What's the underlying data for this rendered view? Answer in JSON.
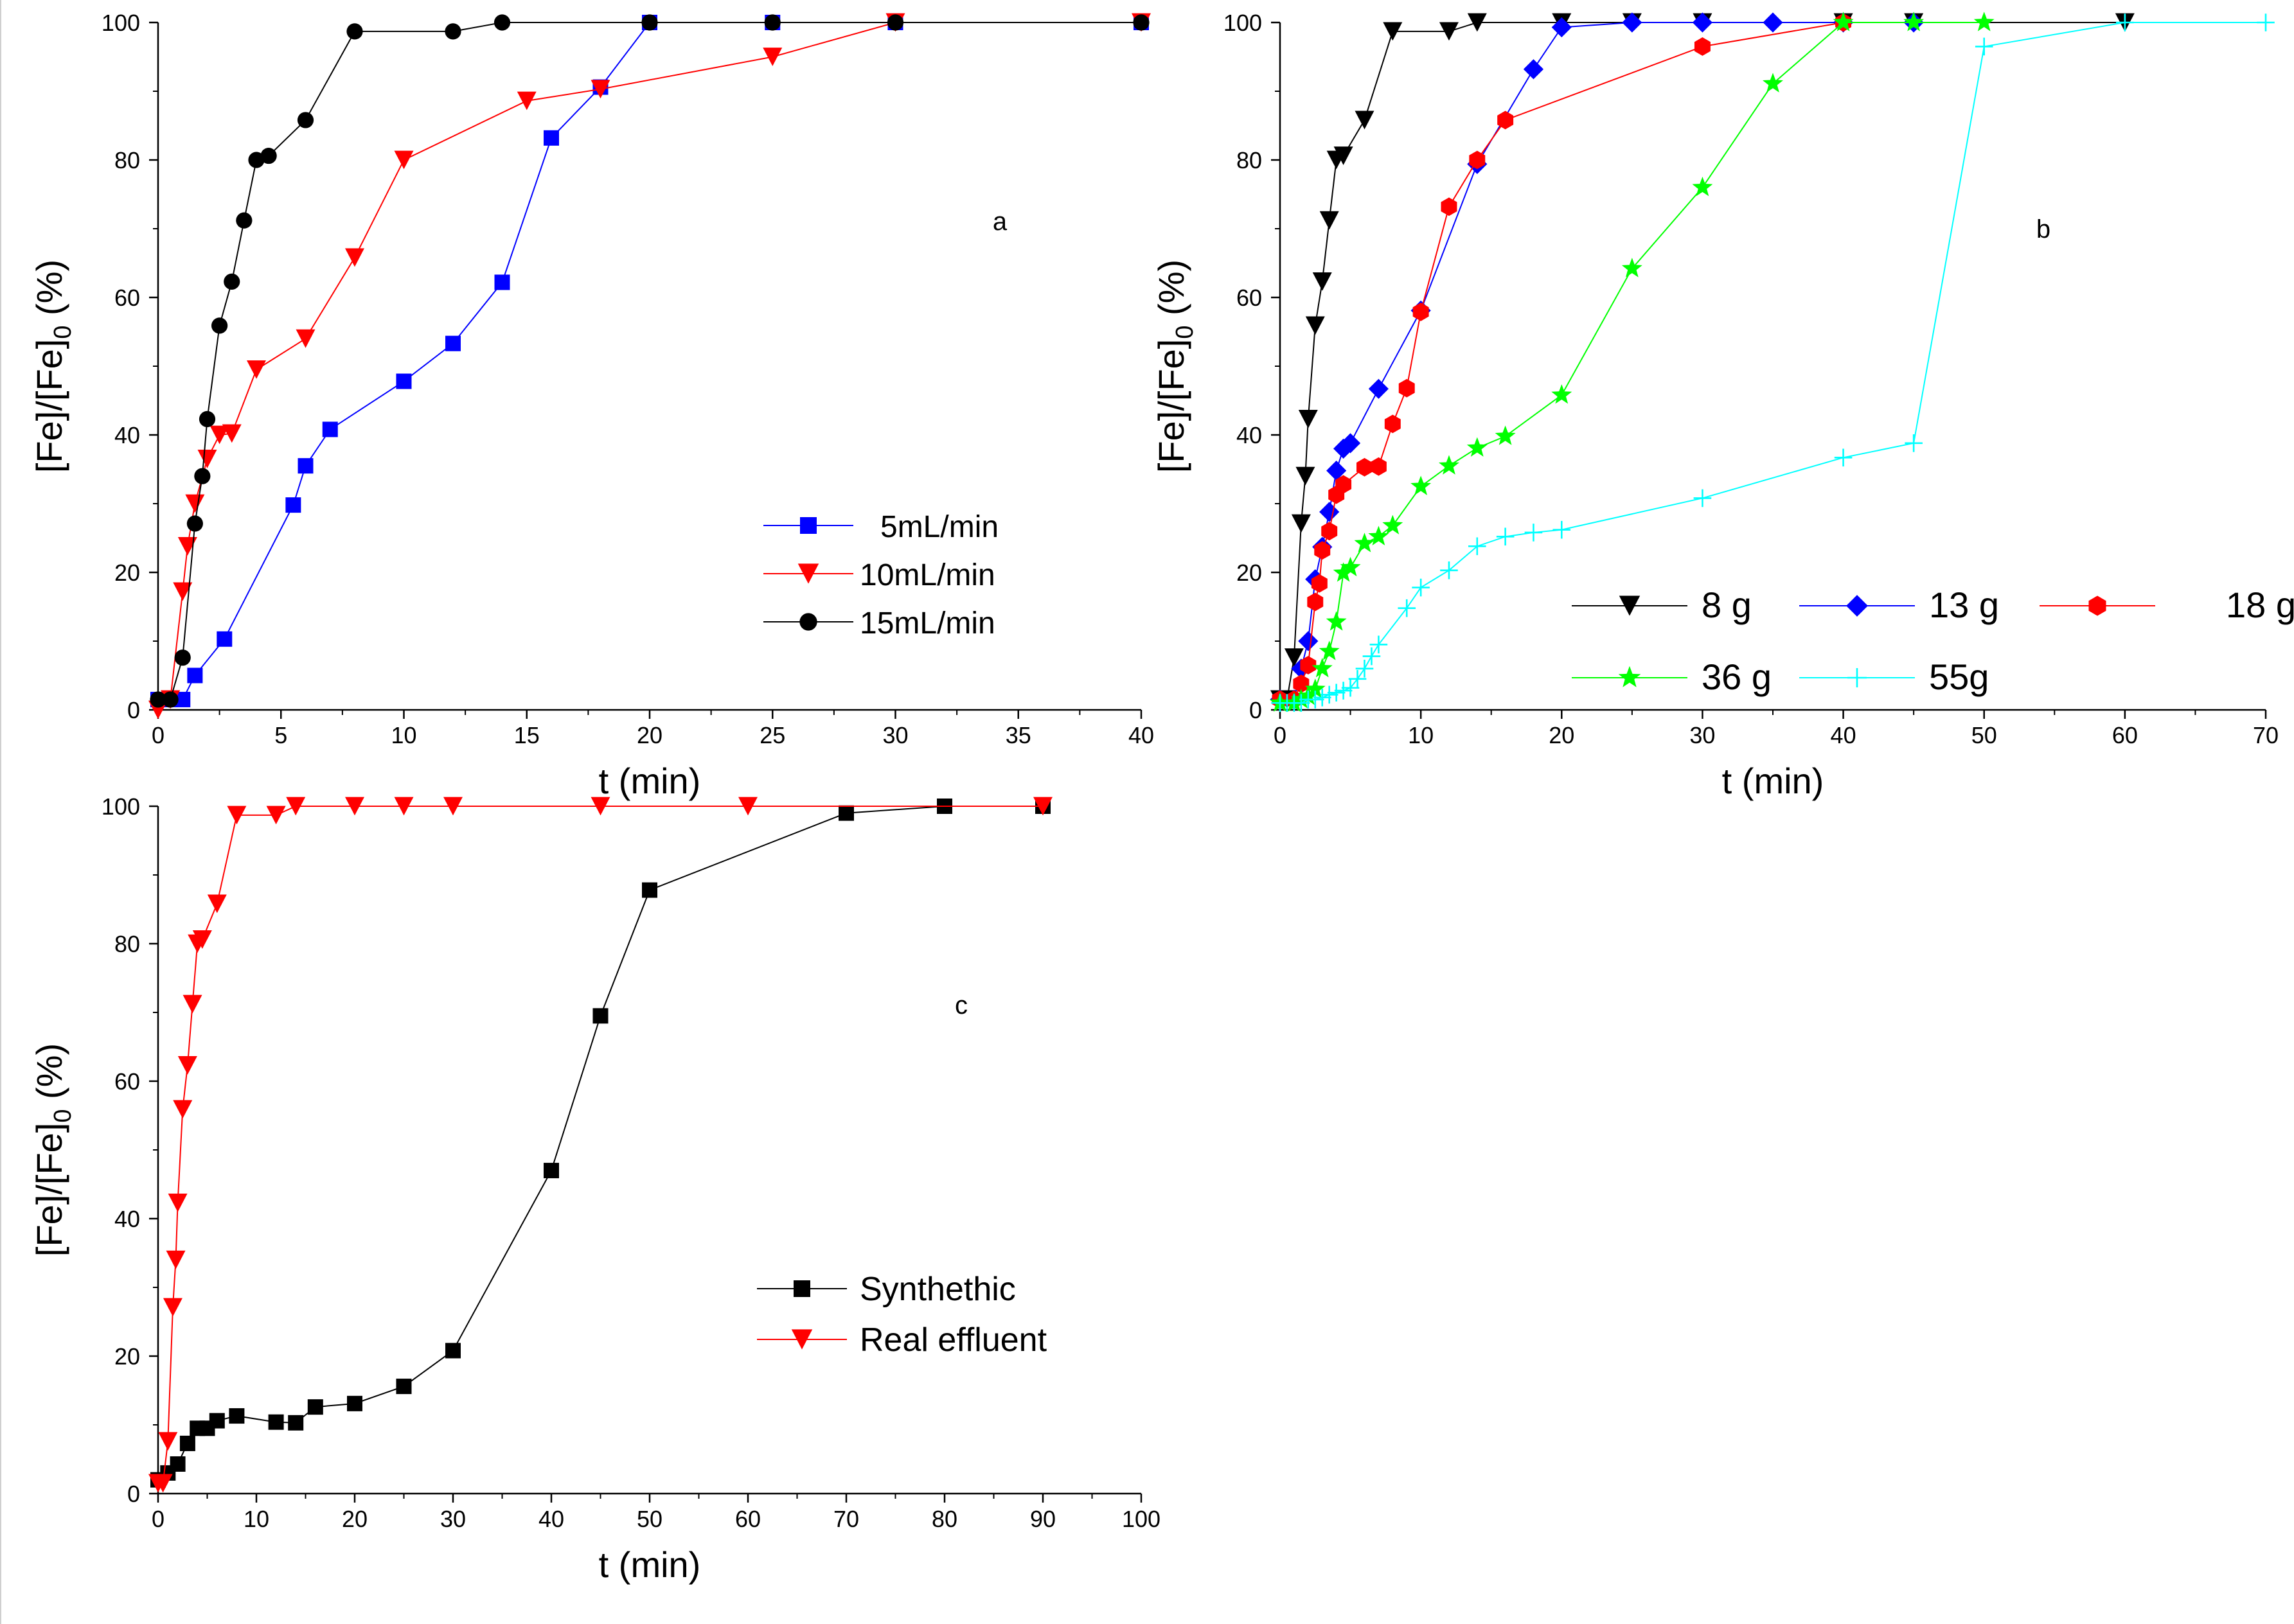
{
  "chart_data": [
    {
      "type": "line",
      "panel_label": "a",
      "xlabel": "t (min)",
      "ylabel": "[Fe]/[Fe]0 (%)",
      "xlim": [
        0,
        40
      ],
      "ylim": [
        0,
        100
      ],
      "xticks": [
        0,
        5,
        10,
        15,
        20,
        25,
        30,
        35,
        40
      ],
      "yticks": [
        0,
        20,
        40,
        60,
        80,
        100
      ],
      "grid": false,
      "legend_position": "center-right",
      "series": [
        {
          "name": "5mL/min",
          "color": "#0000ff",
          "marker": "square",
          "x": [
            0,
            0.5,
            1,
            1.5,
            2.7,
            5.5,
            6,
            7,
            10,
            12,
            14,
            16,
            18,
            20,
            25,
            30,
            40
          ],
          "y": [
            1.5,
            1.5,
            1.5,
            5,
            10.3,
            29.8,
            35.5,
            40.8,
            47.8,
            53.3,
            62.2,
            83.2,
            90.6,
            100,
            100,
            100,
            100
          ]
        },
        {
          "name": "10mL/min",
          "color": "#ff0000",
          "marker": "triangle-down",
          "x": [
            0,
            0.5,
            1,
            1.2,
            1.5,
            2,
            2.5,
            3,
            4,
            6,
            8,
            10,
            15,
            18,
            25,
            30,
            40
          ],
          "y": [
            0,
            1.5,
            17.2,
            23.8,
            30,
            36.5,
            40,
            40.2,
            49.5,
            54,
            65.8,
            80,
            88.6,
            90.3,
            95,
            100,
            100
          ]
        },
        {
          "name": "15mL/min",
          "color": "#000000",
          "marker": "circle",
          "x": [
            0,
            0.5,
            1,
            1.5,
            1.8,
            2,
            2.5,
            3,
            3.5,
            4,
            4.5,
            6,
            8,
            12,
            14,
            20,
            25,
            30,
            40
          ],
          "y": [
            1.5,
            1.5,
            7.6,
            27.1,
            34,
            42.3,
            55.9,
            62.3,
            71.2,
            80,
            80.6,
            85.8,
            98.7,
            98.7,
            100,
            100,
            100,
            100,
            100
          ]
        }
      ]
    },
    {
      "type": "line",
      "panel_label": "b",
      "xlabel": "t (min)",
      "ylabel": "[Fe]/[Fe]0 (%)",
      "xlim": [
        0,
        70
      ],
      "ylim": [
        0,
        100
      ],
      "xticks": [
        0,
        10,
        20,
        30,
        40,
        50,
        60,
        70
      ],
      "yticks": [
        0,
        20,
        40,
        60,
        80,
        100
      ],
      "grid": false,
      "legend_position": "bottom-right",
      "series": [
        {
          "name": "8 g",
          "color": "#000000",
          "marker": "triangle-down",
          "x": [
            0,
            0.5,
            1,
            1.5,
            1.8,
            2,
            2.5,
            3,
            3.5,
            4,
            4.5,
            6,
            8,
            12,
            14,
            20,
            25,
            30,
            40,
            45,
            60
          ],
          "y": [
            1.5,
            1.5,
            7.6,
            27.1,
            34,
            42.3,
            55.9,
            62.3,
            71.2,
            80,
            80.6,
            85.8,
            98.7,
            98.7,
            100,
            100,
            100,
            100,
            100,
            100,
            100
          ]
        },
        {
          "name": "13 g",
          "color": "#0000ff",
          "marker": "diamond",
          "x": [
            0,
            1,
            1.5,
            2,
            2.5,
            3,
            3.5,
            4,
            4.5,
            5,
            7,
            10,
            14,
            18,
            20,
            25,
            30,
            35,
            40,
            45
          ],
          "y": [
            1.5,
            1.5,
            6,
            10,
            19,
            23.7,
            28.8,
            34.8,
            38,
            38.8,
            46.7,
            58.1,
            79.4,
            93.2,
            99.3,
            100,
            100,
            100,
            100,
            100
          ]
        },
        {
          "name": "18 g",
          "color": "#ff0000",
          "marker": "hexagon",
          "x": [
            0,
            1,
            1.5,
            2,
            2.5,
            2.8,
            3,
            3.5,
            4,
            4.5,
            6,
            7,
            8,
            9,
            10,
            12,
            14,
            16,
            30,
            40
          ],
          "y": [
            1.5,
            1.5,
            3.8,
            6.5,
            15.7,
            18.4,
            23.2,
            26,
            31.3,
            32.8,
            35.3,
            35.4,
            41.6,
            46.8,
            57.9,
            73.2,
            80,
            85.8,
            96.5,
            100
          ]
        },
        {
          "name": "36 g",
          "color": "#00ff00",
          "marker": "star",
          "x": [
            0,
            1,
            1.5,
            2,
            2.5,
            3,
            3.5,
            4,
            4.5,
            5,
            6,
            7,
            8,
            10,
            12,
            14,
            16,
            20,
            25,
            30,
            35,
            40,
            45,
            50
          ],
          "y": [
            1,
            1,
            1.5,
            2,
            3,
            6,
            8.5,
            12.8,
            19.9,
            20.7,
            24.2,
            25.2,
            26.8,
            32.5,
            35.5,
            38.1,
            39.8,
            45.8,
            64.2,
            76,
            91.1,
            100,
            100,
            100
          ]
        },
        {
          "name": "55g",
          "color": "#00ffff",
          "marker": "plus",
          "x": [
            0,
            0.5,
            1,
            1.5,
            2,
            2.5,
            3,
            3.5,
            4,
            4.5,
            5,
            5.5,
            6,
            6.5,
            7,
            9,
            10,
            12,
            14,
            16,
            18,
            20,
            30,
            40,
            45,
            50,
            60,
            70
          ],
          "y": [
            1,
            1,
            1,
            1,
            1.5,
            1.5,
            1.8,
            2.2,
            2.5,
            2.8,
            3.2,
            4.5,
            6,
            7.8,
            9.5,
            14.8,
            17.8,
            20.3,
            23.8,
            25.2,
            25.8,
            26.2,
            30.8,
            36.7,
            38.8,
            96.5,
            100,
            100
          ]
        }
      ]
    },
    {
      "type": "line",
      "panel_label": "c",
      "xlabel": "t (min)",
      "ylabel": "[Fe]/[Fe]0 (%)",
      "xlim": [
        0,
        100
      ],
      "ylim": [
        0,
        100
      ],
      "xticks": [
        0,
        10,
        20,
        30,
        40,
        50,
        60,
        70,
        80,
        90,
        100
      ],
      "yticks": [
        0,
        20,
        40,
        60,
        80,
        100
      ],
      "grid": false,
      "legend_position": "bottom-right",
      "series": [
        {
          "name": "Synthethic",
          "color": "#000000",
          "marker": "square",
          "x": [
            0,
            1,
            2,
            3,
            4,
            5,
            6,
            8,
            12,
            14,
            16,
            20,
            25,
            30,
            40,
            45,
            50,
            70,
            80,
            90
          ],
          "y": [
            2,
            3,
            4.3,
            7.3,
            9.5,
            9.5,
            10.6,
            11.3,
            10.4,
            10.3,
            12.6,
            13.1,
            15.6,
            20.8,
            47,
            69.5,
            87.8,
            99,
            100,
            100
          ]
        },
        {
          "name": "Real effluent",
          "color": "#ff0000",
          "marker": "triangle-down",
          "x": [
            0,
            0.5,
            1,
            1.5,
            1.8,
            2,
            2.5,
            3,
            3.5,
            4,
            4.5,
            6,
            8,
            12,
            14,
            20,
            25,
            30,
            45,
            60,
            90
          ],
          "y": [
            1.5,
            1.5,
            7.6,
            27.1,
            34,
            42.3,
            55.9,
            62.3,
            71.2,
            80,
            80.6,
            85.8,
            98.7,
            98.7,
            100,
            100,
            100,
            100,
            100,
            100,
            100
          ]
        }
      ]
    }
  ]
}
